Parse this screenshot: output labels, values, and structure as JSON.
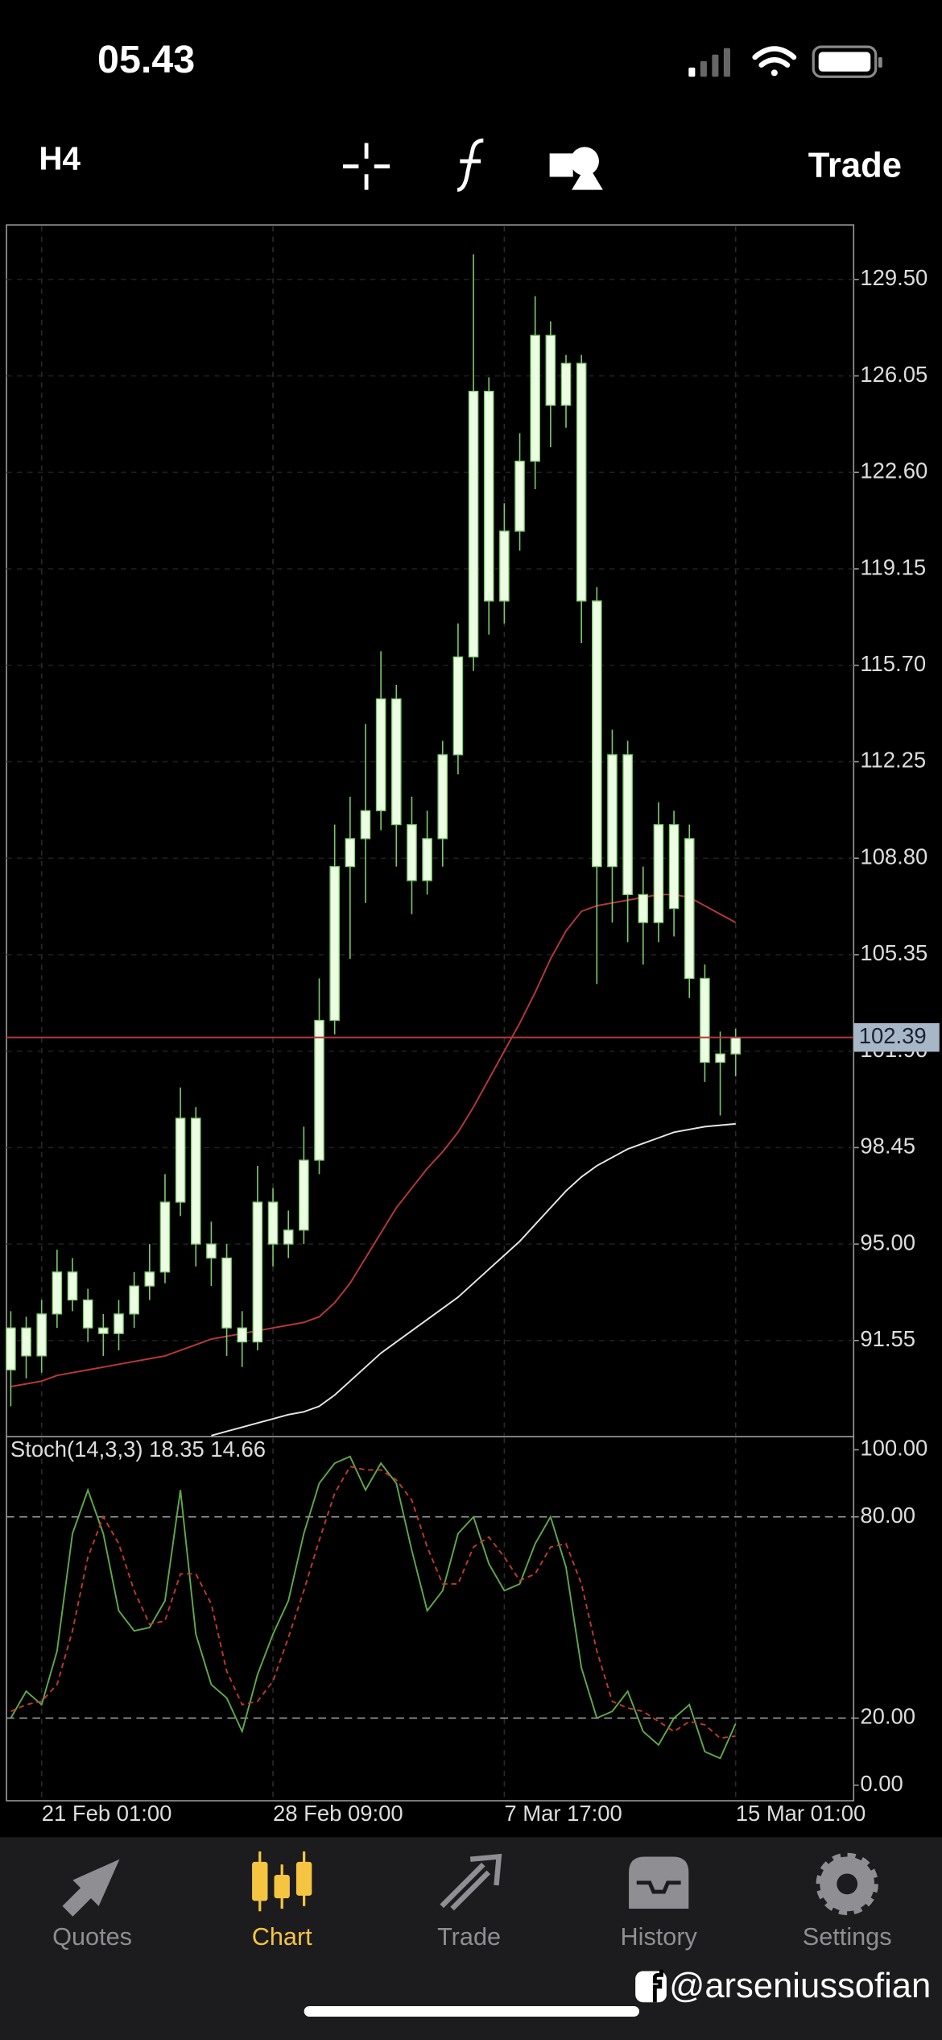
{
  "status_bar": {
    "time": "05.43"
  },
  "toolbar": {
    "timeframe": "H4",
    "action": "Trade"
  },
  "chart_data": [
    {
      "type": "candlestick",
      "open": [
        90.5,
        92.0,
        91.0,
        92.5,
        94.0,
        93.0,
        92.0,
        91.8,
        92.5,
        93.5,
        94.0,
        96.5,
        99.5,
        95.0,
        94.5,
        92.0,
        91.5,
        96.5,
        95.0,
        95.5,
        98.0,
        103.0,
        108.5,
        109.5,
        110.5,
        114.5,
        110.0,
        108.0,
        109.5,
        112.5,
        116.0,
        125.5,
        118.0,
        120.5,
        123.0,
        127.5,
        125.0,
        126.5,
        118.0,
        108.5,
        112.5,
        107.5,
        106.5,
        110.0,
        109.5,
        104.5,
        101.5,
        101.8
      ],
      "high": [
        92.6,
        92.4,
        93.0,
        94.8,
        94.5,
        93.4,
        92.5,
        93.0,
        94.0,
        95.0,
        97.5,
        100.6,
        99.9,
        95.8,
        95.0,
        92.6,
        97.8,
        97.0,
        96.2,
        99.2,
        104.5,
        110.0,
        111.0,
        113.6,
        116.2,
        115.0,
        111.0,
        110.5,
        113.0,
        117.2,
        130.4,
        126.0,
        121.5,
        124.0,
        128.9,
        128.0,
        126.8,
        126.8,
        118.5,
        113.4,
        113.0,
        108.5,
        110.8,
        110.5,
        110.0,
        105.0,
        102.6,
        102.7
      ],
      "low": [
        89.2,
        90.2,
        90.4,
        92.0,
        92.6,
        91.5,
        91.0,
        91.2,
        92.0,
        93.0,
        93.6,
        96.0,
        94.2,
        93.5,
        91.0,
        90.6,
        91.2,
        94.2,
        94.5,
        95.0,
        97.5,
        102.5,
        105.2,
        107.2,
        109.8,
        108.5,
        106.8,
        107.5,
        108.5,
        111.8,
        115.5,
        116.8,
        117.2,
        119.8,
        122.0,
        123.5,
        124.2,
        116.5,
        104.3,
        106.5,
        105.8,
        105.0,
        105.8,
        106.0,
        103.8,
        100.8,
        99.6,
        101.0
      ],
      "close": [
        92.0,
        91.0,
        92.5,
        94.0,
        93.0,
        92.0,
        91.8,
        92.5,
        93.5,
        94.0,
        96.5,
        99.5,
        95.0,
        94.5,
        92.0,
        91.5,
        96.5,
        95.0,
        95.5,
        98.0,
        103.0,
        108.5,
        109.5,
        110.5,
        114.5,
        110.0,
        108.0,
        109.5,
        112.5,
        116.0,
        125.5,
        118.0,
        120.5,
        123.0,
        127.5,
        125.0,
        126.5,
        118.0,
        108.5,
        112.5,
        107.5,
        106.5,
        110.0,
        107.0,
        104.5,
        101.5,
        101.8,
        102.39
      ],
      "candle_color": "#ecfde4",
      "outline_color": "#7cc96a",
      "lines": [
        {
          "color": "#b8383a",
          "values": [
            89.9,
            90.0,
            90.1,
            90.3,
            90.4,
            90.5,
            90.6,
            90.7,
            90.8,
            90.9,
            91.0,
            91.2,
            91.4,
            91.6,
            91.7,
            91.8,
            91.9,
            92.0,
            92.1,
            92.2,
            92.4,
            92.9,
            93.6,
            94.5,
            95.4,
            96.3,
            97.0,
            97.7,
            98.3,
            99.0,
            99.9,
            100.9,
            101.9,
            102.9,
            104.0,
            105.2,
            106.2,
            106.9,
            107.1,
            107.2,
            107.3,
            107.4,
            107.5,
            107.5,
            107.4,
            107.1,
            106.8,
            106.5
          ]
        },
        {
          "color": "#e6e6e6",
          "values": [
            null,
            null,
            null,
            null,
            null,
            null,
            null,
            null,
            null,
            null,
            null,
            null,
            null,
            88.15,
            88.3,
            88.45,
            88.6,
            88.75,
            88.9,
            89.0,
            89.2,
            89.6,
            90.1,
            90.6,
            91.1,
            91.5,
            91.9,
            92.3,
            92.7,
            93.1,
            93.6,
            94.1,
            94.6,
            95.1,
            95.7,
            96.3,
            96.9,
            97.4,
            97.8,
            98.1,
            98.4,
            98.6,
            98.8,
            99.0,
            99.1,
            99.2,
            99.25,
            99.3
          ]
        }
      ],
      "last_price": 102.39,
      "last_price_color": "#b03a3a",
      "ylim": [
        88.11,
        131.45
      ],
      "yticks": [
        {
          "value": 129.5,
          "label": "129.50"
        },
        126.05,
        {
          "value": 122.6,
          "label": "122.60"
        },
        119.15,
        {
          "value": 115.7,
          "label": "115.70"
        },
        112.25,
        {
          "value": 108.8,
          "label": "108.80"
        },
        105.35,
        {
          "value": 101.9,
          "label": "101.90"
        },
        98.45,
        {
          "value": 95,
          "label": "95.00"
        },
        91.55
      ],
      "grid": true
    },
    {
      "type": "line",
      "title": "Stoch(14,3,3) 18.35 14.66",
      "categories": [
        null,
        null,
        "21 Feb 01:00",
        null,
        null,
        null,
        null,
        null,
        null,
        null,
        null,
        null,
        null,
        null,
        null,
        null,
        null,
        "28 Feb 09:00",
        null,
        null,
        null,
        null,
        null,
        null,
        null,
        null,
        null,
        null,
        null,
        null,
        null,
        null,
        "7 Mar 17:00",
        null,
        null,
        null,
        null,
        null,
        null,
        null,
        null,
        null,
        null,
        null,
        null,
        null,
        null,
        "15 Mar 01:00"
      ],
      "series": [
        {
          "color": "#5fa84a",
          "values": [
            20,
            28,
            24,
            40,
            75,
            88,
            75,
            52,
            46,
            47,
            55,
            88,
            45,
            30,
            26,
            16,
            33,
            45,
            55,
            75,
            90,
            96,
            98,
            88,
            96,
            90,
            70,
            52,
            58,
            75,
            80,
            66,
            58,
            60,
            72,
            80,
            65,
            35,
            20,
            22,
            28,
            16,
            12,
            20,
            24,
            10,
            8,
            18.35
          ]
        },
        {
          "color": "#c0392b",
          "dashed": true,
          "values": [
            22,
            24,
            25,
            30,
            46,
            68,
            80,
            72,
            58,
            48,
            49,
            63,
            63,
            54,
            34,
            24,
            25,
            31,
            44,
            58,
            73,
            87,
            95,
            94,
            94,
            91,
            85,
            71,
            60,
            60,
            71,
            74,
            68,
            61,
            63,
            71,
            72,
            60,
            40,
            25,
            23,
            22,
            19,
            16,
            19,
            18,
            14,
            14.66
          ]
        }
      ],
      "levels": [
        80,
        20
      ],
      "ylim": [
        -4.65,
        103.9
      ],
      "yticks": [
        {
          "value": 0,
          "label": "0.00"
        },
        {
          "value": 20,
          "label": "20.00"
        },
        {
          "value": 80,
          "label": "80.00"
        },
        {
          "value": 100,
          "label": "100.00"
        }
      ],
      "grid": true
    }
  ],
  "tab_bar": {
    "tabs": [
      "Quotes",
      "Chart",
      "Trade",
      "History",
      "Settings"
    ]
  },
  "watermark": "@arseniussofian"
}
